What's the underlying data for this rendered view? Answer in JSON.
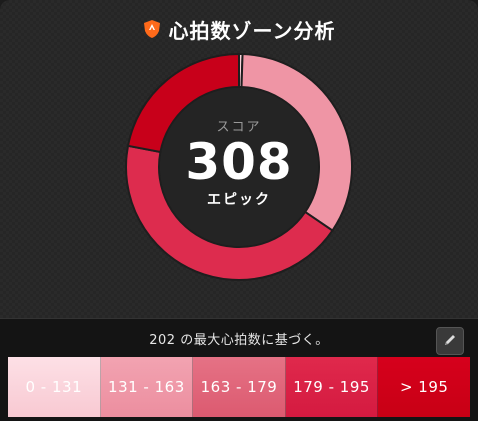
{
  "header": {
    "title": "心拍数ゾーン分析",
    "icon": "shield-icon"
  },
  "score": {
    "label": "スコア",
    "value": "308",
    "rating": "エピック"
  },
  "chart_data": {
    "type": "pie",
    "donut": true,
    "categories": [
      "0 - 131",
      "131 - 163",
      "163 - 179",
      "179 - 195",
      "> 195"
    ],
    "values": [
      0.5,
      34,
      0,
      43.5,
      22
    ],
    "colors": [
      "#f8d3da",
      "#ef95a5",
      "#e06378",
      "#dd2c4e",
      "#c8001a"
    ],
    "start_angle_deg": 0,
    "direction": "clockwise"
  },
  "footer": {
    "basis_text": "202 の最大心拍数に基づく。",
    "edit_icon": "pencil-icon"
  },
  "zones": [
    {
      "label": "0 - 131",
      "color": "#fde0e6"
    },
    {
      "label": "131 - 163",
      "color": "#ef95a5"
    },
    {
      "label": "163 - 179",
      "color": "#e06378"
    },
    {
      "label": "179 - 195",
      "color": "#dd2c4e"
    },
    {
      "label": "> 195",
      "color": "#d6001c"
    }
  ]
}
